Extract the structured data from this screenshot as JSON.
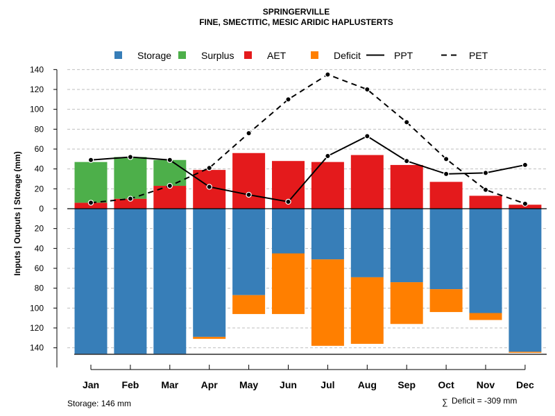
{
  "chart_data": {
    "type": "bar",
    "title": "SPRINGERVILLE",
    "subtitle": "FINE, SMECTITIC, MESIC ARIDIC HAPLUSTERTS",
    "ylabel": "Inputs | Outputs | Storage    (mm)",
    "ylim": [
      -150,
      140
    ],
    "yticks": [
      140,
      120,
      100,
      80,
      60,
      40,
      20,
      0,
      -20,
      -40,
      -60,
      -80,
      -100,
      -120,
      -140
    ],
    "ytick_labels": [
      "140",
      "120",
      "100",
      "80",
      "60",
      "40",
      "20",
      "0",
      "20",
      "40",
      "60",
      "80",
      "100",
      "120",
      "140"
    ],
    "categories": [
      "Jan",
      "Feb",
      "Mar",
      "Apr",
      "May",
      "Jun",
      "Jul",
      "Aug",
      "Sep",
      "Oct",
      "Nov",
      "Dec"
    ],
    "legend": [
      {
        "label": "Storage",
        "kind": "square",
        "color": "#377EB8"
      },
      {
        "label": "Surplus",
        "kind": "square",
        "color": "#4DAF4A"
      },
      {
        "label": "AET",
        "kind": "square",
        "color": "#E41A1C"
      },
      {
        "label": "Deficit",
        "kind": "square",
        "color": "#FF7F00"
      },
      {
        "label": "PPT",
        "kind": "solid-line",
        "color": "#000000"
      },
      {
        "label": "PET",
        "kind": "dashed-line",
        "color": "#000000"
      }
    ],
    "series": [
      {
        "name": "AET",
        "color": "#E41A1C",
        "values": [
          6,
          10,
          23,
          39,
          56,
          48,
          47,
          54,
          44,
          27,
          13,
          4
        ]
      },
      {
        "name": "Surplus",
        "color": "#4DAF4A",
        "values": [
          41,
          42,
          26,
          0,
          0,
          0,
          0,
          0,
          0,
          0,
          0,
          0
        ]
      },
      {
        "name": "Storage",
        "color": "#377EB8",
        "values": [
          146,
          146,
          146,
          129,
          87,
          45,
          51,
          69,
          74,
          81,
          105,
          144
        ]
      },
      {
        "name": "Deficit",
        "color": "#FF7F00",
        "values": [
          0,
          0,
          0,
          2,
          19,
          61,
          87,
          67,
          42,
          23,
          7,
          1
        ]
      },
      {
        "name": "PPT",
        "color": "#000000",
        "style": "solid",
        "values": [
          49,
          52,
          49,
          22,
          14,
          7,
          53,
          73,
          48,
          35,
          36,
          44
        ]
      },
      {
        "name": "PET",
        "color": "#000000",
        "style": "dashed",
        "values": [
          6,
          10,
          23,
          41,
          76,
          110,
          135,
          120,
          87,
          50,
          19,
          5
        ]
      }
    ],
    "storage_note": "Storage: 146 mm",
    "deficit_note": "Deficit = -309 mm",
    "sigma": "∑"
  }
}
